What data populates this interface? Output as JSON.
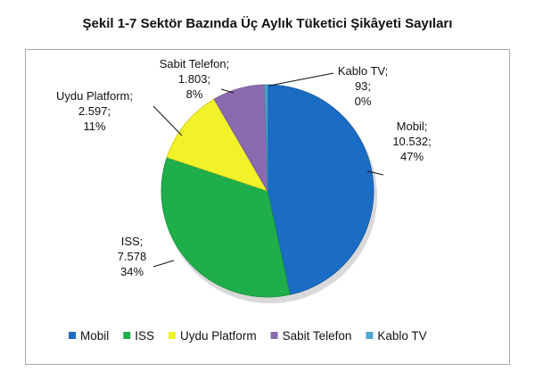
{
  "chart_data": {
    "type": "pie",
    "title": "Şekil 1-7 Sektör Bazında Üç Aylık Tüketici Şikâyeti Sayıları",
    "slices": [
      {
        "name": "Mobil",
        "value": 10532,
        "value_label": "10.532;",
        "percent_label": "47%",
        "color": "#1a6cc4"
      },
      {
        "name": "ISS",
        "value": 7578,
        "value_label": "7.578",
        "percent_label": "34%",
        "color": "#1fae4a"
      },
      {
        "name": "Uydu Platform",
        "value": 2597,
        "value_label": "2.597;",
        "percent_label": "11%",
        "color": "#f2f22b"
      },
      {
        "name": "Sabit Telefon",
        "value": 1803,
        "value_label": "1.803;",
        "percent_label": "8%",
        "color": "#8a6aae"
      },
      {
        "name": "Kablo TV",
        "value": 93,
        "value_label": "93;",
        "percent_label": "0%",
        "color": "#4fa7cf"
      }
    ],
    "legend_position": "bottom"
  }
}
